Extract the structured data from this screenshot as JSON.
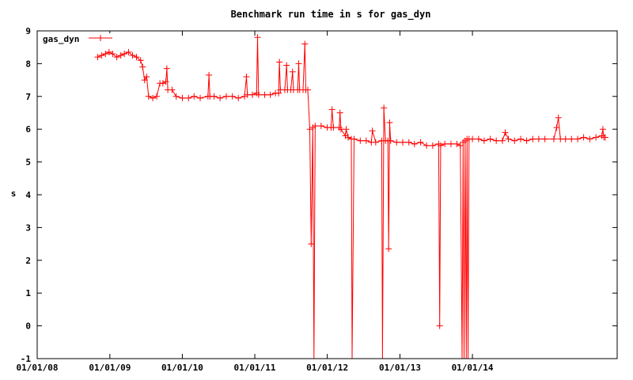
{
  "chart_data": {
    "type": "line",
    "title": "Benchmark run time in s for gas_dyn",
    "xlabel": "",
    "ylabel": "s",
    "xlim": [
      "2008-01-01",
      "2015-12-31"
    ],
    "ylim": [
      -1,
      9
    ],
    "x_ticks": [
      "01/01/08",
      "01/01/09",
      "01/01/10",
      "01/01/11",
      "01/01/12",
      "01/01/13",
      "01/01/14"
    ],
    "y_ticks": [
      "-1",
      "0",
      "1",
      "2",
      "3",
      "4",
      "5",
      "6",
      "7",
      "8",
      "9"
    ],
    "legend": {
      "position": "top-left"
    },
    "grid": false,
    "colors": {
      "series": "#ff0000",
      "axes": "#000000",
      "background": "#ffffff"
    },
    "series": [
      {
        "name": "gas_dyn",
        "marker": "plus",
        "points": [
          [
            "2008-11-01",
            8.2
          ],
          [
            "2008-11-20",
            8.25
          ],
          [
            "2008-12-10",
            8.3
          ],
          [
            "2008-12-28",
            8.35
          ],
          [
            "2009-01-15",
            8.3
          ],
          [
            "2009-02-05",
            8.2
          ],
          [
            "2009-02-25",
            8.25
          ],
          [
            "2009-03-15",
            8.3
          ],
          [
            "2009-04-05",
            8.35
          ],
          [
            "2009-04-25",
            8.25
          ],
          [
            "2009-05-15",
            8.2
          ],
          [
            "2009-06-05",
            8.1
          ],
          [
            "2009-06-15",
            7.9
          ],
          [
            "2009-06-25",
            7.5
          ],
          [
            "2009-07-05",
            7.6
          ],
          [
            "2009-07-15",
            7.0
          ],
          [
            "2009-08-05",
            6.95
          ],
          [
            "2009-08-25",
            7.0
          ],
          [
            "2009-09-10",
            7.4
          ],
          [
            "2009-09-25",
            7.4
          ],
          [
            "2009-10-10",
            7.45
          ],
          [
            "2009-10-15",
            7.85
          ],
          [
            "2009-10-20",
            7.2
          ],
          [
            "2009-11-10",
            7.2
          ],
          [
            "2009-12-01",
            7.0
          ],
          [
            "2010-01-01",
            6.95
          ],
          [
            "2010-02-01",
            6.95
          ],
          [
            "2010-03-01",
            7.0
          ],
          [
            "2010-04-01",
            6.95
          ],
          [
            "2010-05-10",
            7.0
          ],
          [
            "2010-05-15",
            7.65
          ],
          [
            "2010-05-20",
            7.0
          ],
          [
            "2010-06-10",
            7.0
          ],
          [
            "2010-07-10",
            6.95
          ],
          [
            "2010-08-10",
            7.0
          ],
          [
            "2010-09-10",
            7.0
          ],
          [
            "2010-10-10",
            6.95
          ],
          [
            "2010-11-10",
            7.0
          ],
          [
            "2010-11-20",
            7.6
          ],
          [
            "2010-11-25",
            7.05
          ],
          [
            "2010-12-20",
            7.05
          ],
          [
            "2011-01-10",
            7.1
          ],
          [
            "2011-01-15",
            8.8
          ],
          [
            "2011-01-20",
            7.05
          ],
          [
            "2011-02-20",
            7.05
          ],
          [
            "2011-03-20",
            7.05
          ],
          [
            "2011-04-15",
            7.1
          ],
          [
            "2011-05-01",
            7.1
          ],
          [
            "2011-05-05",
            8.05
          ],
          [
            "2011-05-10",
            7.2
          ],
          [
            "2011-06-01",
            7.2
          ],
          [
            "2011-06-10",
            7.95
          ],
          [
            "2011-06-15",
            7.2
          ],
          [
            "2011-07-01",
            7.2
          ],
          [
            "2011-07-10",
            7.75
          ],
          [
            "2011-07-15",
            7.2
          ],
          [
            "2011-08-05",
            7.2
          ],
          [
            "2011-08-10",
            8.0
          ],
          [
            "2011-08-15",
            7.2
          ],
          [
            "2011-09-01",
            7.2
          ],
          [
            "2011-09-10",
            8.6
          ],
          [
            "2011-09-15",
            7.2
          ],
          [
            "2011-09-25",
            7.2
          ],
          [
            "2011-10-05",
            6.0
          ],
          [
            "2011-10-12",
            2.5
          ],
          [
            "2011-10-20",
            6.05
          ],
          [
            "2011-10-26",
            -1.2
          ],
          [
            "2011-11-01",
            6.1
          ],
          [
            "2011-12-01",
            6.1
          ],
          [
            "2012-01-01",
            6.05
          ],
          [
            "2012-01-20",
            6.05
          ],
          [
            "2012-01-25",
            6.6
          ],
          [
            "2012-02-01",
            6.05
          ],
          [
            "2012-03-01",
            6.05
          ],
          [
            "2012-03-05",
            6.5
          ],
          [
            "2012-03-10",
            6.0
          ],
          [
            "2012-04-01",
            5.8
          ],
          [
            "2012-04-05",
            6.0
          ],
          [
            "2012-04-15",
            5.75
          ],
          [
            "2012-05-01",
            5.7
          ],
          [
            "2012-05-05",
            -1.2
          ],
          [
            "2012-05-15",
            5.7
          ],
          [
            "2012-06-15",
            5.65
          ],
          [
            "2012-07-15",
            5.65
          ],
          [
            "2012-08-10",
            5.6
          ],
          [
            "2012-08-15",
            5.95
          ],
          [
            "2012-09-01",
            5.6
          ],
          [
            "2012-10-01",
            5.65
          ],
          [
            "2012-10-05",
            -1.2
          ],
          [
            "2012-10-12",
            6.65
          ],
          [
            "2012-10-20",
            5.65
          ],
          [
            "2012-11-01",
            5.65
          ],
          [
            "2012-11-05",
            2.35
          ],
          [
            "2012-11-10",
            6.2
          ],
          [
            "2012-11-15",
            5.65
          ],
          [
            "2012-12-15",
            5.6
          ],
          [
            "2013-01-15",
            5.6
          ],
          [
            "2013-02-15",
            5.6
          ],
          [
            "2013-03-15",
            5.55
          ],
          [
            "2013-04-15",
            5.6
          ],
          [
            "2013-05-15",
            5.5
          ],
          [
            "2013-06-15",
            5.5
          ],
          [
            "2013-07-15",
            5.55
          ],
          [
            "2013-07-20",
            0.0
          ],
          [
            "2013-07-25",
            5.5
          ],
          [
            "2013-08-15",
            5.55
          ],
          [
            "2013-09-15",
            5.55
          ],
          [
            "2013-10-15",
            5.55
          ],
          [
            "2013-11-01",
            5.5
          ],
          [
            "2013-11-10",
            -1.2
          ],
          [
            "2013-11-15",
            5.6
          ],
          [
            "2013-11-20",
            -1.2
          ],
          [
            "2013-11-25",
            5.65
          ],
          [
            "2013-12-01",
            -1.2
          ],
          [
            "2013-12-05",
            5.7
          ],
          [
            "2013-12-10",
            -1.2
          ],
          [
            "2013-12-15",
            5.7
          ],
          [
            "2014-01-01",
            5.7
          ],
          [
            "2014-02-01",
            5.7
          ],
          [
            "2014-03-01",
            5.65
          ],
          [
            "2014-04-01",
            5.7
          ],
          [
            "2014-05-01",
            5.65
          ],
          [
            "2014-06-01",
            5.65
          ],
          [
            "2014-06-15",
            5.9
          ],
          [
            "2014-07-01",
            5.7
          ],
          [
            "2014-08-01",
            5.65
          ],
          [
            "2014-09-01",
            5.7
          ],
          [
            "2014-10-01",
            5.65
          ],
          [
            "2014-11-01",
            5.7
          ],
          [
            "2014-12-01",
            5.7
          ],
          [
            "2015-01-01",
            5.7
          ],
          [
            "2015-02-15",
            5.7
          ],
          [
            "2015-03-01",
            6.05
          ],
          [
            "2015-03-10",
            6.35
          ],
          [
            "2015-03-20",
            5.7
          ],
          [
            "2015-04-15",
            5.7
          ],
          [
            "2015-05-15",
            5.7
          ],
          [
            "2015-06-15",
            5.7
          ],
          [
            "2015-07-15",
            5.75
          ],
          [
            "2015-08-15",
            5.7
          ],
          [
            "2015-09-15",
            5.75
          ],
          [
            "2015-10-15",
            5.8
          ],
          [
            "2015-10-20",
            6.0
          ],
          [
            "2015-10-25",
            5.75
          ],
          [
            "2015-11-01",
            5.75
          ]
        ]
      }
    ]
  }
}
